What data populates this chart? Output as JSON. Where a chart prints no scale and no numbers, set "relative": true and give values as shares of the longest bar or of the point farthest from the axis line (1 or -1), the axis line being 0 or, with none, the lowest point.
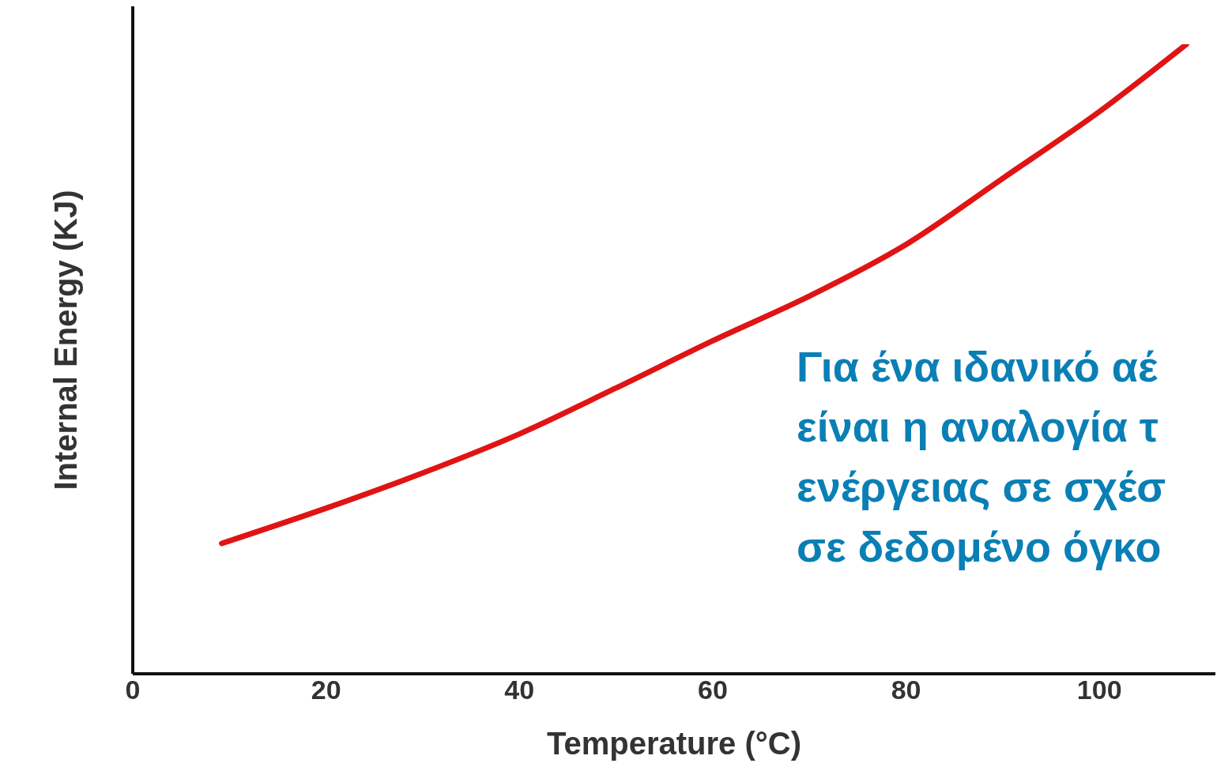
{
  "chart_data": {
    "type": "line",
    "xlabel": "Temperature (°C)",
    "ylabel": "Internal Energy (KJ)",
    "relative": true,
    "xlim": [
      0,
      112
    ],
    "xticks": [
      0,
      20,
      40,
      60,
      80,
      100
    ],
    "x": [
      9.2,
      20,
      30,
      40,
      50,
      60,
      70,
      80,
      90,
      100,
      109
    ],
    "series": [
      {
        "color": "#e01414",
        "values": [
          0.207,
          0.263,
          0.319,
          0.381,
          0.454,
          0.529,
          0.6,
          0.682,
          0.787,
          0.893,
          1
        ]
      }
    ],
    "marker": "none",
    "grid": false,
    "annotations": [
      "Για ένα ιδανικό αέ",
      "είναι η αναλογία τ",
      "ενέργειας σε σχέσ",
      "σε δεδομένο όγκο"
    ]
  }
}
